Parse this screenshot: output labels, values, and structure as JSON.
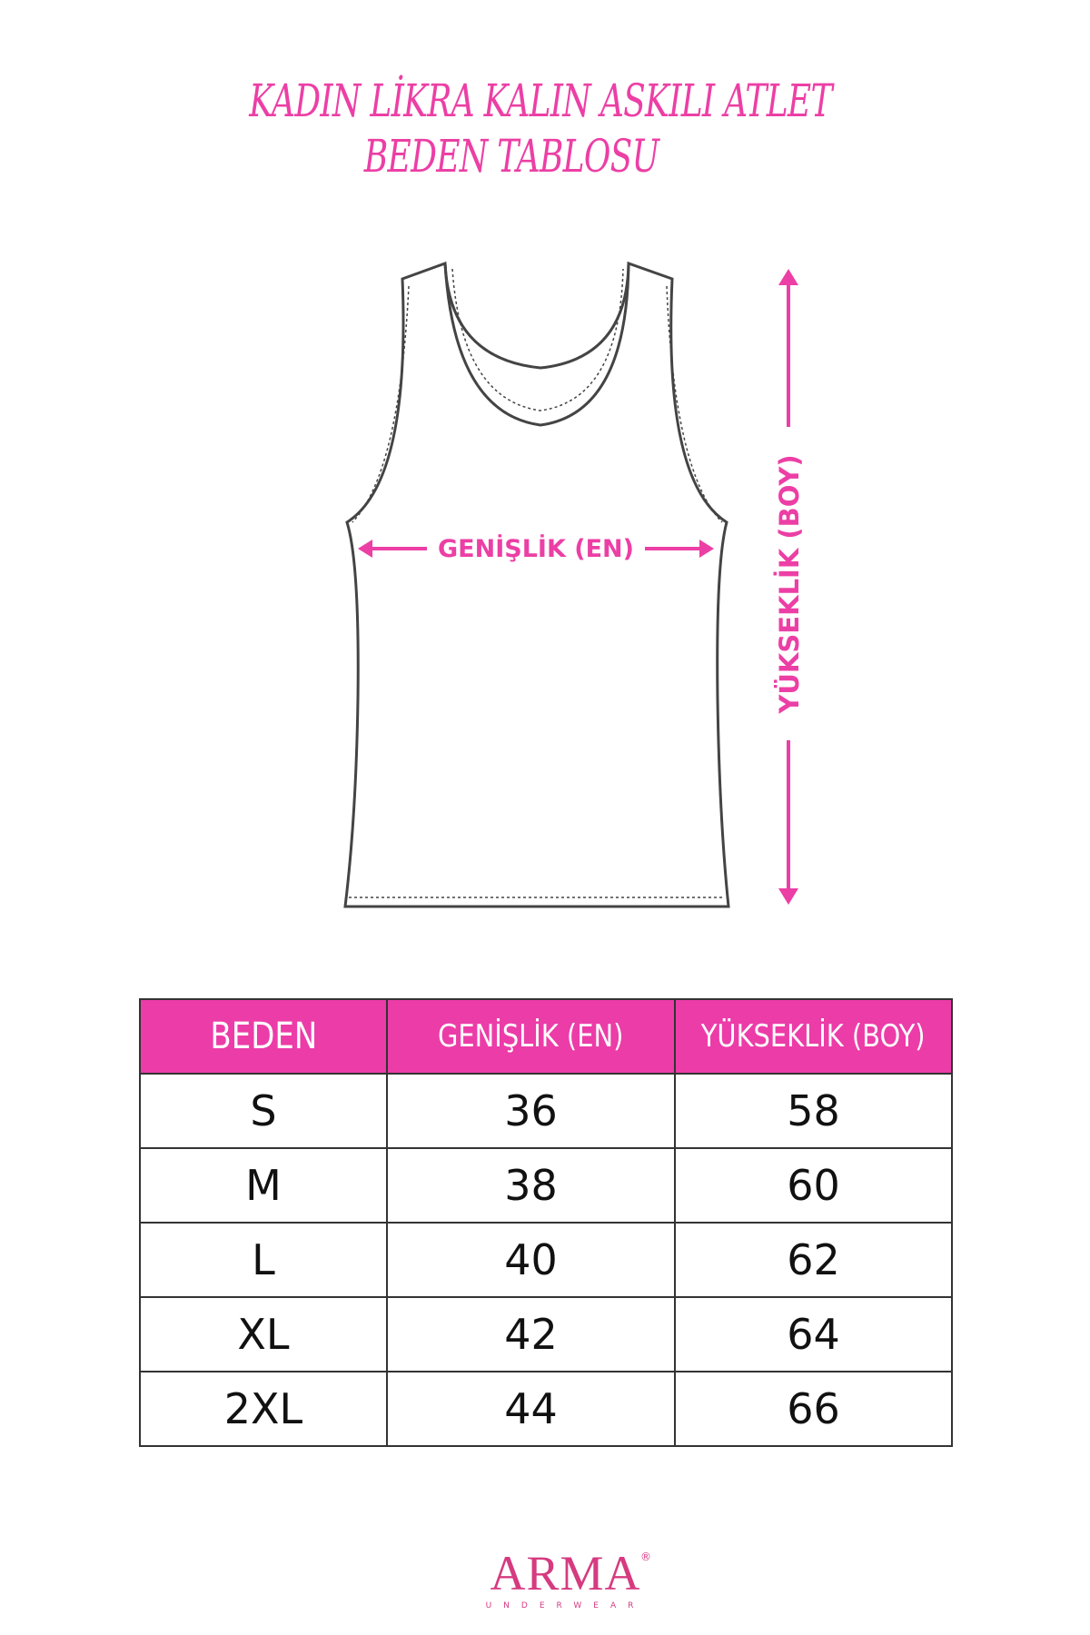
{
  "title": {
    "line1": "KADIN LİKRA KALIN ASKILI ATLET",
    "line2": "BEDEN TABLOSU"
  },
  "diagram": {
    "width_label": "GENİŞLİK (EN)",
    "height_label": "YÜKSEKLİK (BOY)",
    "accent_color": "#ec3fa5"
  },
  "table": {
    "headers": [
      "BEDEN",
      "GENİŞLİK (EN)",
      "YÜKSEKLİK (BOY)"
    ],
    "header_color": "#ec3ca8",
    "rows": [
      [
        "S",
        "36",
        "58"
      ],
      [
        "M",
        "38",
        "60"
      ],
      [
        "L",
        "40",
        "62"
      ],
      [
        "XL",
        "42",
        "64"
      ],
      [
        "2XL",
        "44",
        "66"
      ]
    ]
  },
  "logo": {
    "brand": "ARMA",
    "sub": "UNDERWEAR",
    "reg": "®"
  }
}
